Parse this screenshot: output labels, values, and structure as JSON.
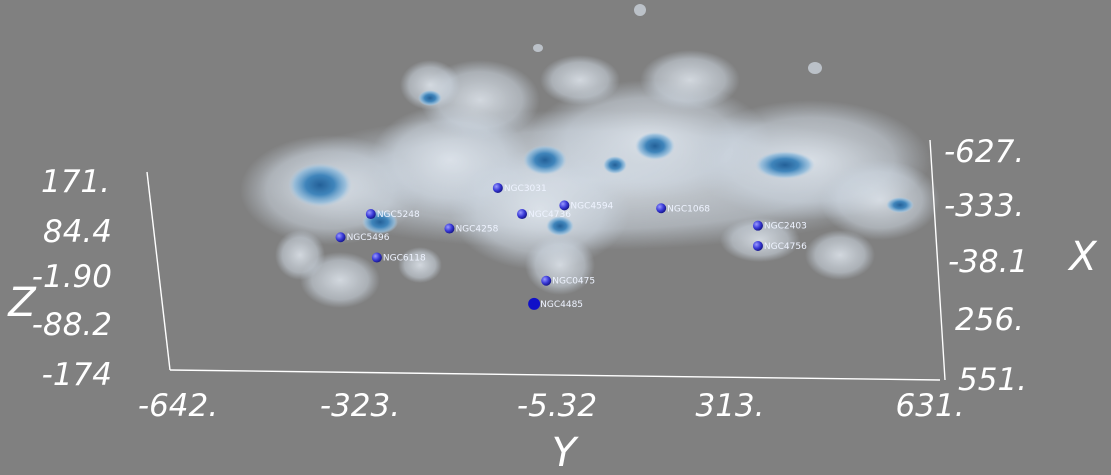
{
  "chart_data": {
    "type": "scatter",
    "title": "",
    "axes": {
      "x": {
        "label": "X",
        "ticks": [
          "-627.",
          "-333.",
          "-38.1",
          "256.",
          "551."
        ],
        "range": [
          -627,
          551
        ]
      },
      "y": {
        "label": "Y",
        "ticks": [
          "-642.",
          "-323.",
          "-5.32",
          "313.",
          "631."
        ],
        "range": [
          -642,
          631
        ]
      },
      "z": {
        "label": "Z",
        "ticks": [
          "171.",
          "84.4",
          "-1.90",
          "-88.2",
          "-174"
        ],
        "range": [
          -174,
          171
        ]
      }
    },
    "grid": false,
    "legend": "none",
    "colors": {
      "background": "#808080",
      "halo": "#dde6f0",
      "core": "#3a7fb3",
      "point": "#3a3ad8",
      "highlight": "#1010c8"
    },
    "points": [
      {
        "label": "NGC4485",
        "y": -40,
        "z": -60
      },
      {
        "label": "NGC0475",
        "y": -20,
        "z": -20
      },
      {
        "label": "NGC6118",
        "y": -300,
        "z": 20
      },
      {
        "label": "NGC5496",
        "y": -360,
        "z": 55
      },
      {
        "label": "NGC5248",
        "y": -310,
        "z": 95
      },
      {
        "label": "NGC4258",
        "y": -180,
        "z": 70
      },
      {
        "label": "NGC4736",
        "y": -60,
        "z": 95
      },
      {
        "label": "NGC4594",
        "y": 10,
        "z": 110
      },
      {
        "label": "NGC1068",
        "y": 170,
        "z": 105
      },
      {
        "label": "NGC2403",
        "y": 330,
        "z": 75
      },
      {
        "label": "NGC4756",
        "y": 330,
        "z": 40
      },
      {
        "label": "NGC3031",
        "y": -100,
        "z": 140
      }
    ]
  }
}
